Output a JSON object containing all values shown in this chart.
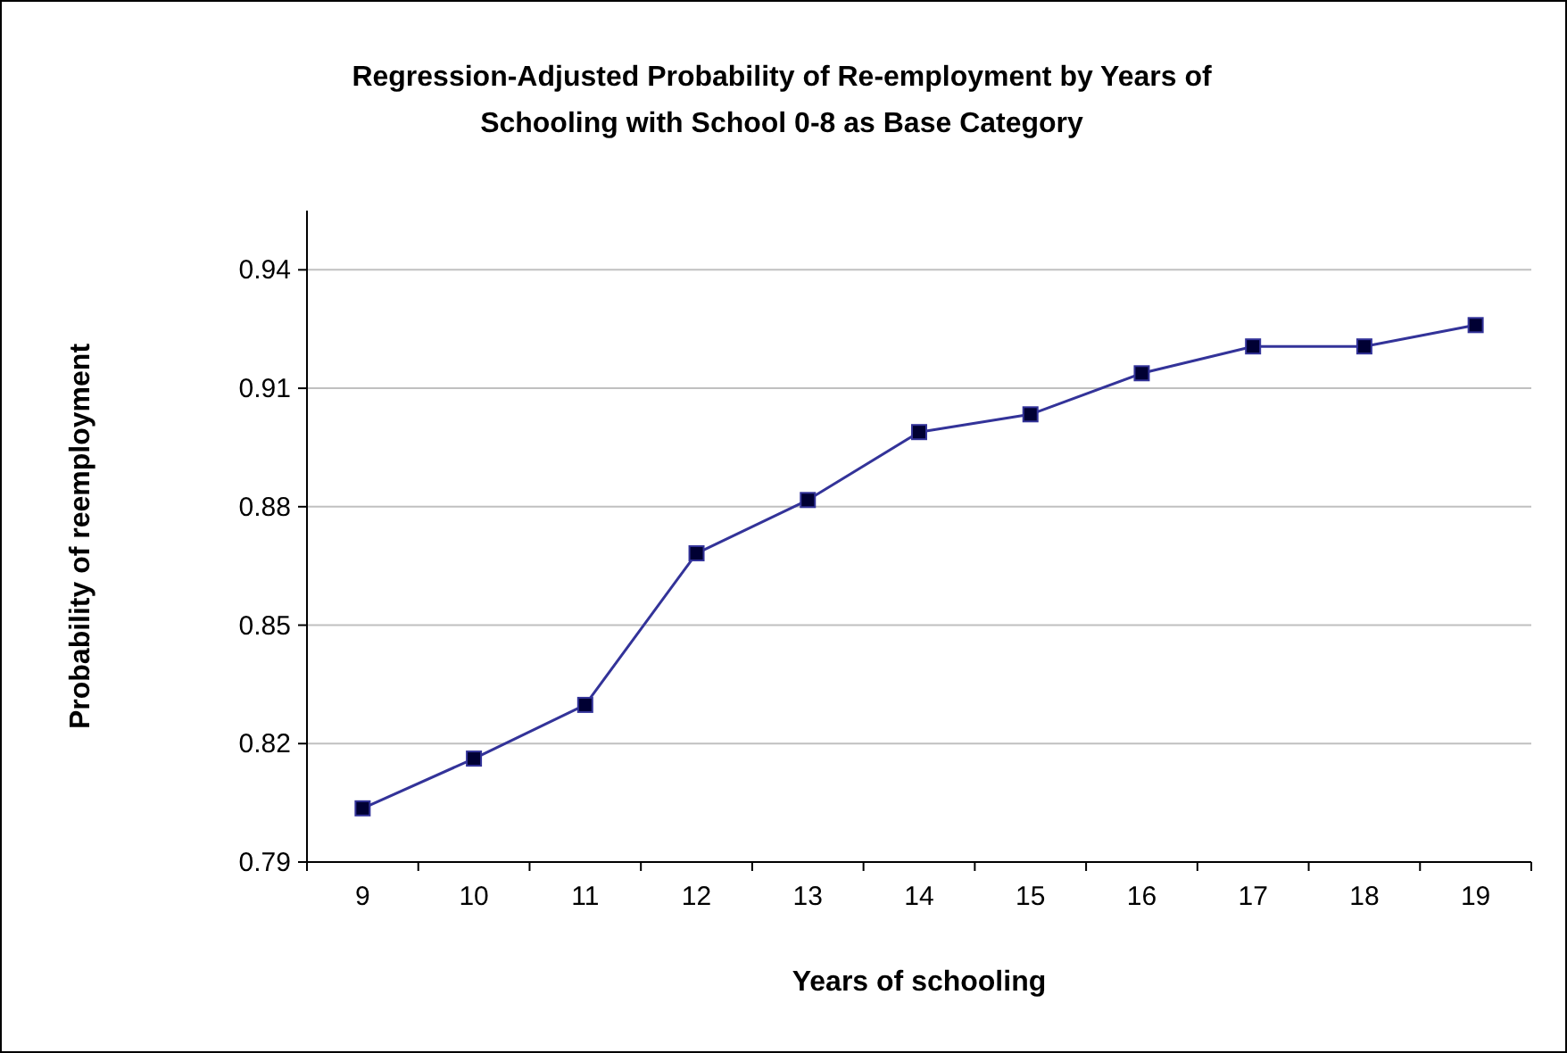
{
  "chart_data": {
    "type": "line",
    "title": "Regression-Adjusted Probability of Re-employment by Years of Schooling with School 0-8 as Base Category",
    "xlabel": "Years of schooling",
    "ylabel": "Probability of reemployment",
    "categories": [
      "9",
      "10",
      "11",
      "12",
      "13",
      "14",
      "15",
      "16",
      "17",
      "18",
      "19"
    ],
    "series": [
      {
        "color": "#333399",
        "values": [
          0.8036,
          0.8162,
          0.8298,
          0.8682,
          0.8817,
          0.8989,
          0.9034,
          0.9138,
          0.9206,
          0.9206,
          0.926
        ]
      }
    ],
    "ylim": [
      0.79,
      0.955
    ],
    "yticks": [
      {
        "value": 0.79,
        "label": "0.79"
      },
      {
        "value": 0.82,
        "label": "0.82"
      },
      {
        "value": 0.85,
        "label": "0.85"
      },
      {
        "value": 0.88,
        "label": "0.88"
      },
      {
        "value": 0.91,
        "label": "0.91"
      },
      {
        "value": 0.94,
        "label": "0.94"
      }
    ],
    "grid": "y",
    "marker": "square",
    "line_style": "solid"
  }
}
